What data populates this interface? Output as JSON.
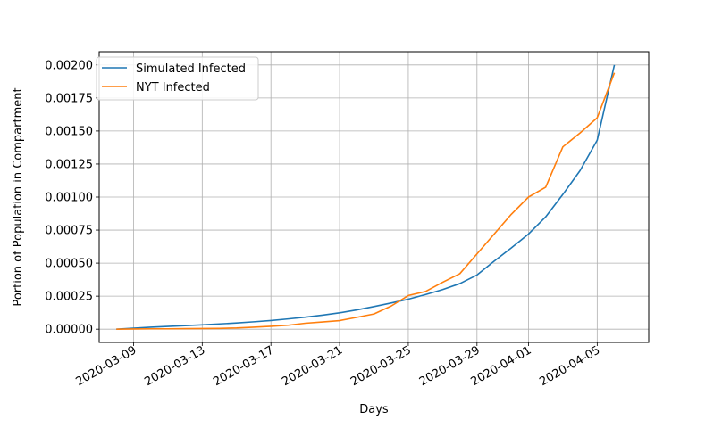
{
  "chart_data": {
    "type": "line",
    "title": "",
    "xlabel": "Days",
    "ylabel": "Portion of Population in Compartment",
    "x": [
      "2020-03-08",
      "2020-03-09",
      "2020-03-10",
      "2020-03-11",
      "2020-03-12",
      "2020-03-13",
      "2020-03-14",
      "2020-03-15",
      "2020-03-16",
      "2020-03-17",
      "2020-03-18",
      "2020-03-19",
      "2020-03-20",
      "2020-03-21",
      "2020-03-22",
      "2020-03-23",
      "2020-03-24",
      "2020-03-25",
      "2020-03-26",
      "2020-03-27",
      "2020-03-28",
      "2020-03-29",
      "2020-03-30",
      "2020-03-31",
      "2020-04-01",
      "2020-04-02",
      "2020-04-03",
      "2020-04-04",
      "2020-04-05",
      "2020-04-06"
    ],
    "xlim": [
      "2020-03-07",
      "2020-04-08"
    ],
    "x_ticks": [
      "2020-03-09",
      "2020-03-13",
      "2020-03-17",
      "2020-03-21",
      "2020-03-25",
      "2020-03-29",
      "2020-04-01",
      "2020-04-05"
    ],
    "ylim": [
      -0.0001,
      0.0021
    ],
    "y_ticks": [
      "0.00000",
      "0.00025",
      "0.00050",
      "0.00075",
      "0.00100",
      "0.00125",
      "0.00150",
      "0.00175",
      "0.00200"
    ],
    "grid": true,
    "legend_position": "top-left",
    "series": [
      {
        "name": "Simulated Infected",
        "color": "#1f77b4",
        "values": [
          0.0,
          8e-06,
          1.5e-05,
          2.1e-05,
          2.7e-05,
          3.3e-05,
          4e-05,
          4.7e-05,
          5.6e-05,
          6.6e-05,
          7.8e-05,
          9.1e-05,
          0.000106,
          0.000124,
          0.000146,
          0.000171,
          0.000198,
          0.000227,
          0.000262,
          0.0003,
          0.000345,
          0.00041,
          0.000515,
          0.000615,
          0.00072,
          0.00085,
          0.00102,
          0.0012,
          0.00143,
          0.002
        ]
      },
      {
        "name": "NYT Infected",
        "color": "#ff7f0e",
        "values": [
          0.0,
          2e-06,
          3e-06,
          3e-06,
          4e-06,
          5e-06,
          6e-06,
          9e-06,
          1.5e-05,
          2.2e-05,
          3e-05,
          4.5e-05,
          5.5e-05,
          6.5e-05,
          9e-05,
          0.000115,
          0.000175,
          0.000255,
          0.000285,
          0.000355,
          0.00042,
          0.00057,
          0.00072,
          0.00087,
          0.001,
          0.001075,
          0.00138,
          0.001485,
          0.0016,
          0.00194
        ]
      }
    ]
  }
}
